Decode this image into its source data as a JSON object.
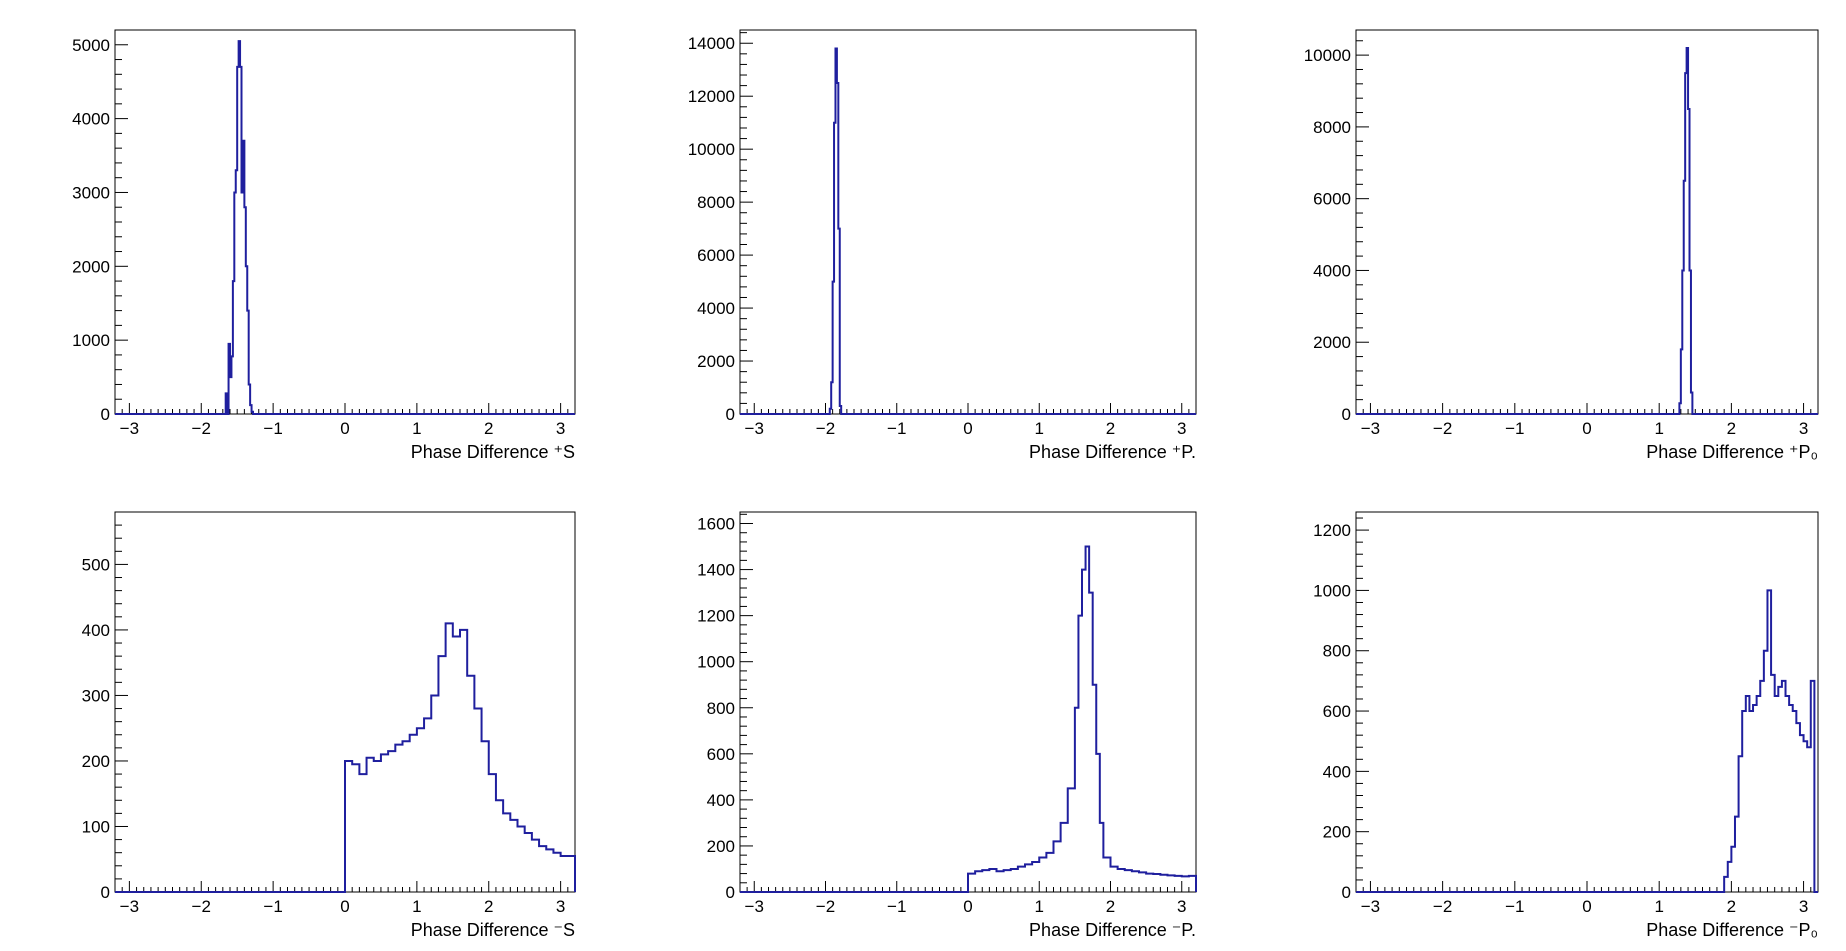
{
  "colors": {
    "histogram": "#1f1f9e",
    "axis": "#000000",
    "background": "#ffffff"
  },
  "chart_data": [
    {
      "type": "histogram",
      "row": 1,
      "col": 1,
      "title": "",
      "xlabel": "Phase Difference ⁺S",
      "xlim": [
        -3.2,
        3.2
      ],
      "ylim": [
        0,
        5200
      ],
      "xticks": [
        -3,
        -2,
        -1,
        0,
        1,
        2,
        3
      ],
      "xtick_labels": [
        "−3",
        "−2",
        "−1",
        "0",
        "1",
        "2",
        "3"
      ],
      "yticks": [
        0,
        1000,
        2000,
        3000,
        4000,
        5000
      ],
      "ytick_labels": [
        "0",
        "1000",
        "2000",
        "3000",
        "4000",
        "5000"
      ],
      "grid": false,
      "series": [
        {
          "x": [
            -1.68,
            -1.66,
            -1.64,
            -1.62,
            -1.6,
            -1.58,
            -1.56,
            -1.54,
            -1.52,
            -1.5,
            -1.48,
            -1.46,
            -1.44,
            -1.42,
            -1.4,
            -1.38,
            -1.36,
            -1.34,
            -1.32,
            -1.3,
            -1.28
          ],
          "values": [
            0,
            280,
            0,
            950,
            500,
            780,
            1800,
            3000,
            3300,
            4700,
            5050,
            4700,
            3000,
            3700,
            2800,
            2000,
            1400,
            400,
            120,
            30,
            0
          ]
        }
      ]
    },
    {
      "type": "histogram",
      "row": 1,
      "col": 2,
      "title": "",
      "xlabel": "Phase Difference ⁺P.",
      "xlim": [
        -3.2,
        3.2
      ],
      "ylim": [
        0,
        14500
      ],
      "xticks": [
        -3,
        -2,
        -1,
        0,
        1,
        2,
        3
      ],
      "xtick_labels": [
        "−3",
        "−2",
        "−1",
        "0",
        "1",
        "2",
        "3"
      ],
      "yticks": [
        0,
        2000,
        4000,
        6000,
        8000,
        10000,
        12000,
        14000
      ],
      "ytick_labels": [
        "0",
        "2000",
        "4000",
        "6000",
        "8000",
        "10000",
        "12000",
        "14000"
      ],
      "grid": false,
      "series": [
        {
          "x": [
            -1.94,
            -1.92,
            -1.9,
            -1.88,
            -1.86,
            -1.84,
            -1.82,
            -1.8,
            -1.78
          ],
          "values": [
            200,
            1200,
            5000,
            11000,
            13800,
            12500,
            7000,
            300,
            0
          ]
        }
      ]
    },
    {
      "type": "histogram",
      "row": 1,
      "col": 3,
      "title": "",
      "xlabel": "Phase Difference ⁺P₀",
      "xlim": [
        -3.2,
        3.2
      ],
      "ylim": [
        0,
        10700
      ],
      "xticks": [
        -3,
        -2,
        -1,
        0,
        1,
        2,
        3
      ],
      "xtick_labels": [
        "−3",
        "−2",
        "−1",
        "0",
        "1",
        "2",
        "3"
      ],
      "yticks": [
        0,
        2000,
        4000,
        6000,
        8000,
        10000
      ],
      "ytick_labels": [
        "0",
        "2000",
        "4000",
        "6000",
        "8000",
        "10000"
      ],
      "grid": false,
      "series": [
        {
          "x": [
            1.28,
            1.3,
            1.32,
            1.34,
            1.36,
            1.38,
            1.4,
            1.42,
            1.44
          ],
          "values": [
            300,
            1800,
            4000,
            6500,
            9500,
            10200,
            8500,
            4000,
            600
          ]
        }
      ]
    },
    {
      "type": "histogram",
      "row": 2,
      "col": 1,
      "title": "",
      "xlabel": "Phase Difference ⁻S",
      "xlim": [
        -3.2,
        3.2
      ],
      "ylim": [
        0,
        580
      ],
      "xticks": [
        -3,
        -2,
        -1,
        0,
        1,
        2,
        3
      ],
      "xtick_labels": [
        "−3",
        "−2",
        "−1",
        "0",
        "1",
        "2",
        "3"
      ],
      "yticks": [
        0,
        100,
        200,
        300,
        400,
        500
      ],
      "ytick_labels": [
        "0",
        "100",
        "200",
        "300",
        "400",
        "500"
      ],
      "grid": false,
      "series": [
        {
          "x": [
            0.0,
            0.1,
            0.2,
            0.3,
            0.4,
            0.5,
            0.6,
            0.7,
            0.8,
            0.9,
            1.0,
            1.1,
            1.2,
            1.3,
            1.4,
            1.5,
            1.6,
            1.7,
            1.8,
            1.9,
            2.0,
            2.1,
            2.2,
            2.3,
            2.4,
            2.5,
            2.6,
            2.7,
            2.8,
            2.9,
            3.0,
            3.1
          ],
          "values": [
            200,
            195,
            180,
            205,
            200,
            210,
            215,
            225,
            230,
            240,
            250,
            265,
            300,
            360,
            410,
            390,
            400,
            330,
            280,
            230,
            180,
            140,
            120,
            110,
            100,
            90,
            80,
            70,
            65,
            60,
            55,
            55
          ]
        }
      ]
    },
    {
      "type": "histogram",
      "row": 2,
      "col": 2,
      "title": "",
      "xlabel": "Phase Difference ⁻P.",
      "xlim": [
        -3.2,
        3.2
      ],
      "ylim": [
        0,
        1650
      ],
      "xticks": [
        -3,
        -2,
        -1,
        0,
        1,
        2,
        3
      ],
      "xtick_labels": [
        "−3",
        "−2",
        "−1",
        "0",
        "1",
        "2",
        "3"
      ],
      "yticks": [
        0,
        200,
        400,
        600,
        800,
        1000,
        1200,
        1400,
        1600
      ],
      "ytick_labels": [
        "0",
        "200",
        "400",
        "600",
        "800",
        "1000",
        "1200",
        "1400",
        "1600"
      ],
      "grid": false,
      "series": [
        {
          "x": [
            0.0,
            0.1,
            0.2,
            0.3,
            0.4,
            0.5,
            0.6,
            0.7,
            0.8,
            0.9,
            1.0,
            1.1,
            1.2,
            1.3,
            1.4,
            1.5,
            1.55,
            1.6,
            1.65,
            1.7,
            1.75,
            1.8,
            1.85,
            1.9,
            2.0,
            2.1,
            2.2,
            2.3,
            2.4,
            2.5,
            2.6,
            2.7,
            2.8,
            2.9,
            3.0,
            3.1
          ],
          "values": [
            80,
            90,
            95,
            100,
            90,
            95,
            100,
            110,
            120,
            130,
            150,
            170,
            220,
            300,
            450,
            800,
            1200,
            1400,
            1500,
            1300,
            900,
            600,
            300,
            150,
            110,
            100,
            95,
            90,
            85,
            80,
            78,
            75,
            72,
            70,
            68,
            70
          ]
        }
      ]
    },
    {
      "type": "histogram",
      "row": 2,
      "col": 3,
      "title": "",
      "xlabel": "Phase Difference ⁻P₀",
      "xlim": [
        -3.2,
        3.2
      ],
      "ylim": [
        0,
        1260
      ],
      "xticks": [
        -3,
        -2,
        -1,
        0,
        1,
        2,
        3
      ],
      "xtick_labels": [
        "−3",
        "−2",
        "−1",
        "0",
        "1",
        "2",
        "3"
      ],
      "yticks": [
        0,
        200,
        400,
        600,
        800,
        1000,
        1200
      ],
      "ytick_labels": [
        "0",
        "200",
        "400",
        "600",
        "800",
        "1000",
        "1200"
      ],
      "grid": false,
      "series": [
        {
          "x": [
            1.85,
            1.9,
            1.95,
            2.0,
            2.05,
            2.1,
            2.15,
            2.2,
            2.25,
            2.3,
            2.35,
            2.4,
            2.45,
            2.5,
            2.55,
            2.6,
            2.65,
            2.7,
            2.75,
            2.8,
            2.85,
            2.9,
            2.95,
            3.0,
            3.05,
            3.1
          ],
          "values": [
            0,
            50,
            100,
            150,
            250,
            450,
            600,
            650,
            600,
            620,
            650,
            700,
            800,
            1000,
            720,
            650,
            680,
            700,
            650,
            620,
            600,
            560,
            520,
            500,
            480,
            700
          ]
        }
      ]
    }
  ]
}
